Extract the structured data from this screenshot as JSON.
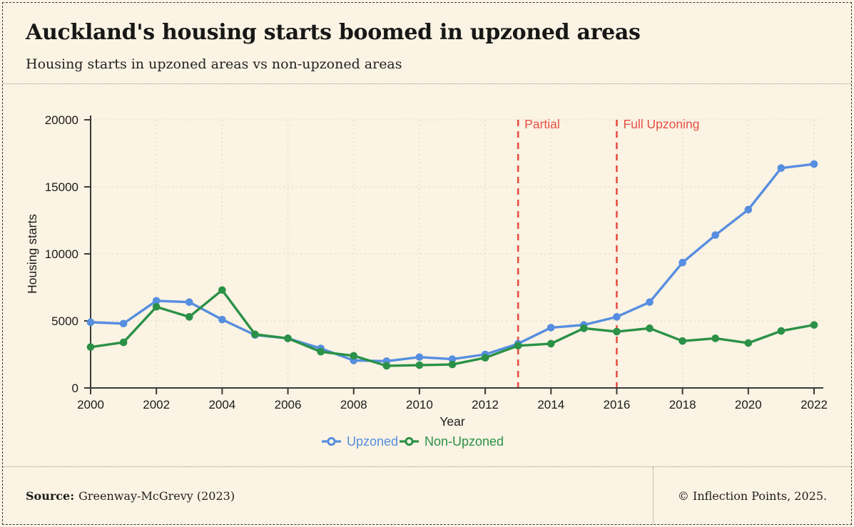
{
  "header": {
    "title": "Auckland's housing starts boomed in upzoned areas",
    "subtitle": "Housing starts in upzoned areas vs non-upzoned areas"
  },
  "footer": {
    "source_label": "Source:",
    "source_text": "Greenway-McGrevy (2023)",
    "credit": "© Inflection Points, 2025."
  },
  "colors": {
    "background": "#fbf3e3",
    "axis": "#3a3a3a",
    "grid": "#ecd8cc",
    "text": "#1c1c1c",
    "upzoned_blue": "#568ee0",
    "non_upzoned_green": "#2a9147",
    "annotation_red": "#e64f44"
  },
  "chart_data": {
    "type": "line",
    "title": "Housing starts in upzoned areas vs non-upzoned areas",
    "xlabel": "Year",
    "ylabel": "Housing starts",
    "x": [
      2000,
      2001,
      2002,
      2003,
      2004,
      2005,
      2006,
      2007,
      2008,
      2009,
      2010,
      2011,
      2012,
      2013,
      2014,
      2015,
      2016,
      2017,
      2018,
      2019,
      2020,
      2021,
      2022
    ],
    "series": [
      {
        "name": "Upzoned",
        "color": "#568ee0",
        "values": [
          4900,
          4800,
          6500,
          6400,
          5100,
          3950,
          3700,
          2950,
          2050,
          2000,
          2300,
          2150,
          2500,
          3300,
          4500,
          4700,
          5300,
          6400,
          9350,
          11400,
          13300,
          16400,
          16700
        ]
      },
      {
        "name": "Non-Upzoned",
        "color": "#2a9147",
        "values": [
          3050,
          3400,
          6050,
          5300,
          7300,
          4000,
          3700,
          2700,
          2400,
          1650,
          1700,
          1750,
          2250,
          3150,
          3300,
          4450,
          4200,
          4450,
          3500,
          3700,
          3350,
          4250,
          4700
        ]
      }
    ],
    "annotations": [
      {
        "label": "Partial",
        "x": 2013,
        "color": "#e64f44"
      },
      {
        "label": "Full Upzoning",
        "x": 2016,
        "color": "#e64f44"
      }
    ],
    "x_ticks": [
      2000,
      2002,
      2004,
      2006,
      2008,
      2010,
      2012,
      2014,
      2016,
      2018,
      2020,
      2022
    ],
    "y_ticks": [
      0,
      5000,
      10000,
      15000,
      20000
    ],
    "xlim": [
      2000,
      2022
    ],
    "ylim": [
      0,
      20000
    ],
    "grid": true,
    "grid_style": "dotted",
    "legend_position": "bottom"
  }
}
